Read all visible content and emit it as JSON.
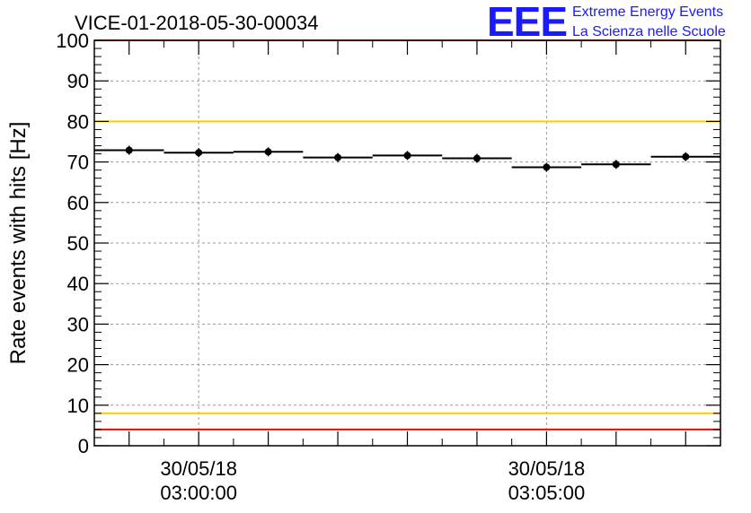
{
  "header": {
    "title": "VICE-01-2018-05-30-00034",
    "logo": {
      "mark": "EEE",
      "line1": "Extreme Energy Events",
      "line2": "La Scienza nelle Scuole"
    }
  },
  "chart_data": {
    "type": "scatter",
    "title": "VICE-01-2018-05-30-00034",
    "xlabel": "",
    "ylabel": "Rate events with hits [Hz]",
    "ylim": [
      0,
      100
    ],
    "yticks": [
      0,
      10,
      20,
      30,
      40,
      50,
      60,
      70,
      80,
      90,
      100
    ],
    "x_unit": "minutes",
    "xlim": [
      -1.5,
      7.5
    ],
    "xticks": [
      {
        "x": 0,
        "date": "30/05/18",
        "time": "03:00:00"
      },
      {
        "x": 5,
        "date": "30/05/18",
        "time": "03:05:00"
      }
    ],
    "grid": true,
    "series": [
      {
        "x": [
          -1,
          0,
          1,
          2,
          3,
          4,
          5,
          6,
          7
        ],
        "y": [
          72.9,
          72.3,
          72.5,
          71.1,
          71.6,
          70.9,
          68.7,
          69.4,
          71.3
        ],
        "x_err": 0.5,
        "color": "#000000"
      }
    ],
    "reference_lines": [
      {
        "y": 100,
        "color": "#ff0000"
      },
      {
        "y": 80,
        "color": "#ffcc00"
      },
      {
        "y": 8,
        "color": "#ffcc00"
      },
      {
        "y": 4,
        "color": "#ff0000"
      }
    ]
  }
}
